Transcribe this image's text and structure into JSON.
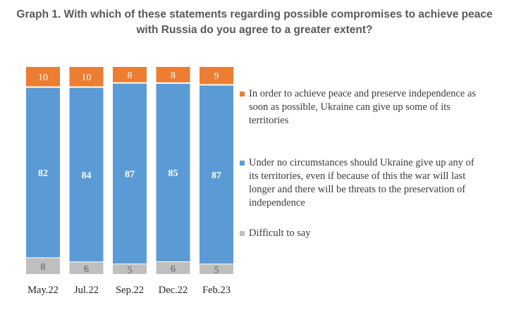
{
  "title_line1": "Graph 1. With which of these statements regarding possible compromises to achieve peace",
  "title_line2": "with Russia do you agree to a greater extent?",
  "chart_data": {
    "type": "bar",
    "stacked": true,
    "percent": true,
    "categories": [
      "May.22",
      "Jul.22",
      "Sep.22",
      "Dec.22",
      "Feb.23"
    ],
    "series": [
      {
        "name": "Difficult to say",
        "values": [
          8,
          6,
          5,
          6,
          5
        ],
        "color": "#bfbfbf",
        "label_color": "#595959"
      },
      {
        "name": "Under no circumstances should Ukraine give up any of its territories, even if because of this the war will last longer and there will be threats to the preservation of independence",
        "values": [
          82,
          84,
          87,
          85,
          87
        ],
        "color": "#5b9bd5",
        "label_color": "#ffffff"
      },
      {
        "name": "In order to achieve peace and preserve independence as soon as possible, Ukraine can give up some of its territories",
        "values": [
          10,
          10,
          8,
          8,
          9
        ],
        "color": "#ed7d31",
        "label_color": "#ffffff"
      }
    ],
    "legend_position": "right",
    "grid": false
  },
  "legend": [
    {
      "text": "In order to achieve peace and preserve independence as soon as possible, Ukraine can give up some of its territories",
      "color": "#ed7d31"
    },
    {
      "text": "Under no circumstances should Ukraine give up any of its territories, even if because of this the war will last longer and there will be threats to the preservation of independence",
      "color": "#5b9bd5"
    },
    {
      "text": "Difficult to say",
      "color": "#bfbfbf"
    }
  ]
}
